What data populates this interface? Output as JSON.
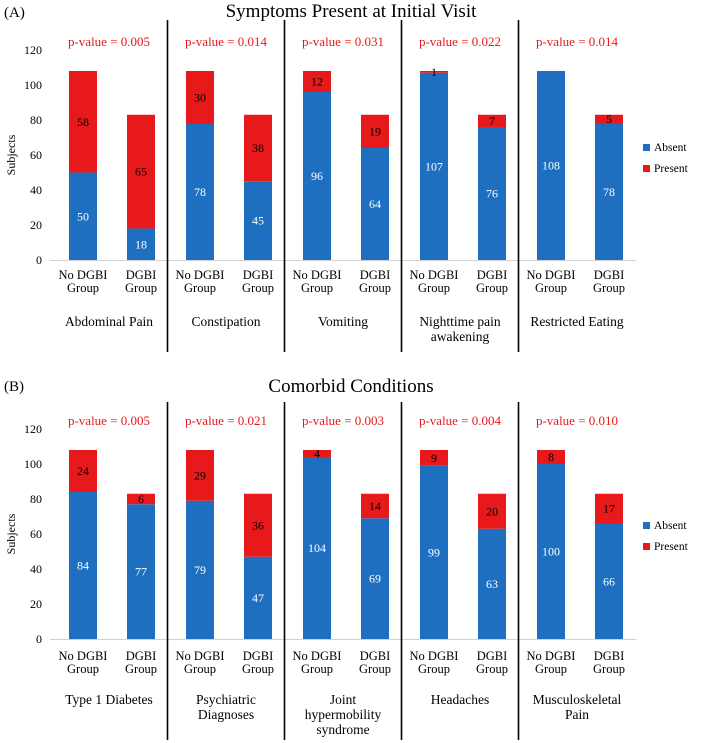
{
  "colors": {
    "absent": "#1f6fc1",
    "present": "#e8191b",
    "pvalue": "#e8191b"
  },
  "chart_data": [
    {
      "type": "bar",
      "stacked": true,
      "panel_label": "(A)",
      "title": "Symptoms Present at Initial Visit",
      "ylabel": "Subjects",
      "ylim": [
        0,
        120
      ],
      "yticks": [
        0,
        20,
        40,
        60,
        80,
        100,
        120
      ],
      "legend": [
        "Absent",
        "Present"
      ],
      "legend_position": "right",
      "categories": [
        "No DGBI Group",
        "DGBI Group"
      ],
      "groups": [
        {
          "name": "Abdominal Pain",
          "pvalue": "p-value = 0.005",
          "absent": [
            50,
            18
          ],
          "present": [
            58,
            65
          ]
        },
        {
          "name": "Constipation",
          "pvalue": "p-value = 0.014",
          "absent": [
            78,
            45
          ],
          "present": [
            30,
            38
          ]
        },
        {
          "name": "Vomiting",
          "pvalue": "p-value = 0.031",
          "absent": [
            96,
            64
          ],
          "present": [
            12,
            19
          ]
        },
        {
          "name": "Nighttime pain awakening",
          "pvalue": "p-value = 0.022",
          "absent": [
            107,
            76
          ],
          "present": [
            1,
            7
          ]
        },
        {
          "name": "Restricted Eating",
          "pvalue": "p-value = 0.014",
          "absent": [
            108,
            78
          ],
          "present": [
            0,
            5
          ]
        }
      ]
    },
    {
      "type": "bar",
      "stacked": true,
      "panel_label": "(B)",
      "title": "Comorbid Conditions",
      "ylabel": "Subjects",
      "ylim": [
        0,
        120
      ],
      "yticks": [
        0,
        20,
        40,
        60,
        80,
        100,
        120
      ],
      "legend": [
        "Absent",
        "Present"
      ],
      "legend_position": "right",
      "categories": [
        "No DGBI Group",
        "DGBI Group"
      ],
      "groups": [
        {
          "name": "Type 1 Diabetes",
          "pvalue": "p-value = 0.005",
          "absent": [
            84,
            77
          ],
          "present": [
            24,
            6
          ]
        },
        {
          "name": "Psychiatric Diagnoses",
          "pvalue": "p-value = 0.021",
          "absent": [
            79,
            47
          ],
          "present": [
            29,
            36
          ]
        },
        {
          "name": "Joint hypermobility syndrome",
          "pvalue": "p-value = 0.003",
          "absent": [
            104,
            69
          ],
          "present": [
            4,
            14
          ]
        },
        {
          "name": "Headaches",
          "pvalue": "p-value = 0.004",
          "absent": [
            99,
            63
          ],
          "present": [
            9,
            20
          ]
        },
        {
          "name": "Musculoskeletal Pain",
          "pvalue": "p-value = 0.010",
          "absent": [
            100,
            66
          ],
          "present": [
            8,
            17
          ]
        }
      ]
    }
  ]
}
